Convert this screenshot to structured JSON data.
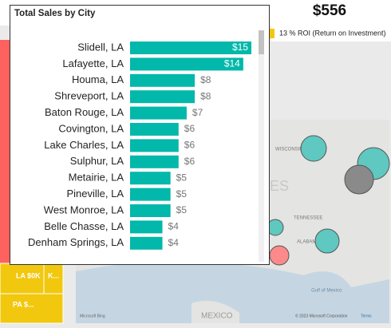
{
  "chart_data": {
    "type": "bar",
    "title": "Total Sales by City",
    "categories": [
      "Slidell, LA",
      "Lafayette, LA",
      "Houma, LA",
      "Shreveport, LA",
      "Baton Rouge, LA",
      "Covington, LA",
      "Lake Charles, LA",
      "Sulphur, LA",
      "Metairie, LA",
      "Pineville, LA",
      "West Monroe, LA",
      "Belle Chasse, LA",
      "Denham Springs, LA"
    ],
    "values": [
      15,
      14,
      8,
      8,
      7,
      6,
      6,
      6,
      5,
      5,
      5,
      4,
      4
    ],
    "value_labels": [
      "$15",
      "$14",
      "$8",
      "$8",
      "$7",
      "$6",
      "$6",
      "$6",
      "$5",
      "$5",
      "$5",
      "$4",
      "$4"
    ],
    "color": "#01b8aa"
  },
  "kpi": {
    "value": "$556",
    "roi": "13 % ROI (Return on Investment)"
  },
  "treemap": {
    "labels": [
      "LA $0K",
      "K...",
      "PA $..."
    ]
  },
  "map": {
    "labels": [
      "WISCONSIN",
      "ES",
      "TENNESSEE",
      "ALABAMA",
      "Gulf of Mexico",
      "MEXICO"
    ],
    "attribution": "Microsoft Bing",
    "copyright": "© 2023 Microsoft Corporation",
    "terms": "Terms"
  }
}
